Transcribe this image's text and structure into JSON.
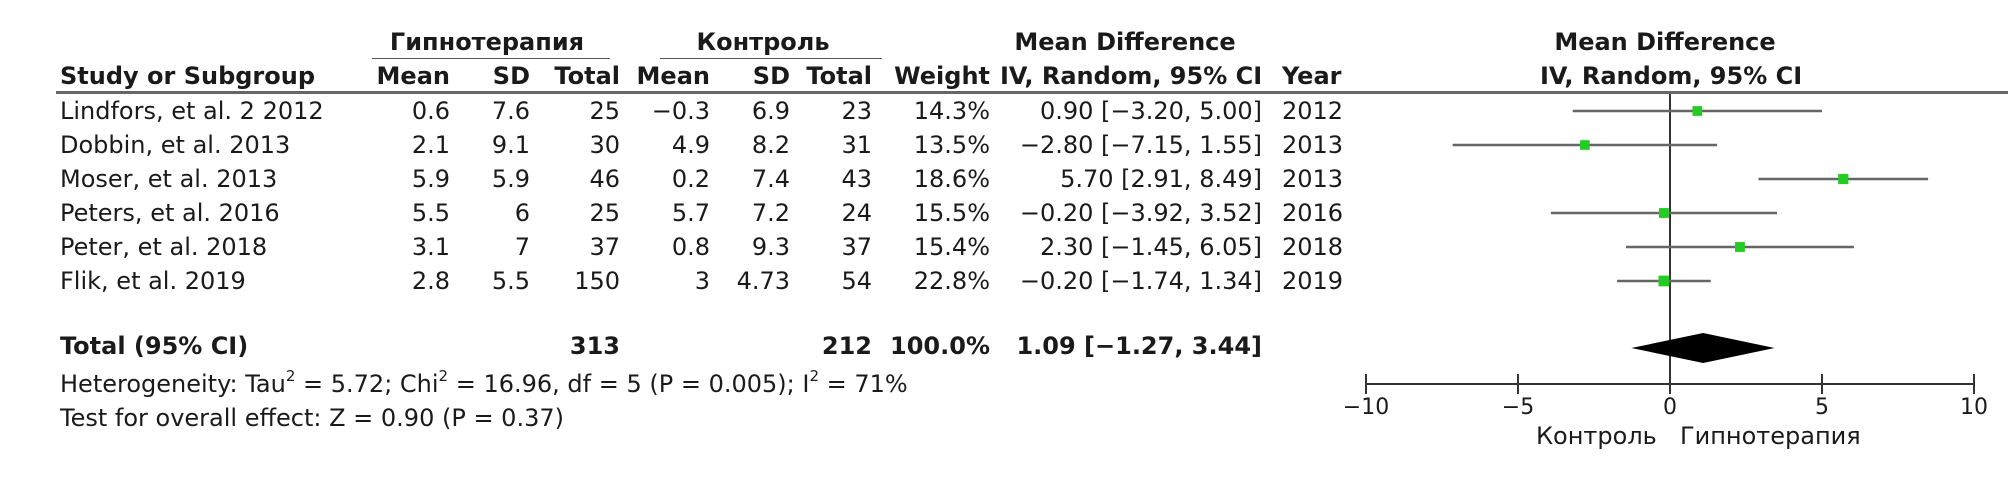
{
  "header": {
    "group1": "Гипнотерапия",
    "group2": "Контроль",
    "md_title": "Mean Difference",
    "md_sub": "IV, Random, 95% CI",
    "plot_title": "Mean Difference",
    "plot_sub": "IV, Random, 95% CI",
    "study": "Study or Subgroup",
    "mean1": "Mean",
    "sd1": "SD",
    "total1": "Total",
    "mean2": "Mean",
    "sd2": "SD",
    "total2": "Total",
    "weight": "Weight",
    "year": "Year"
  },
  "rows": [
    {
      "study": "Lindfors, et al. 2 2012",
      "mean1": "0.6",
      "sd1": "7.6",
      "total1": "25",
      "mean2": "−0.3",
      "sd2": "6.9",
      "total2": "23",
      "weight": "14.3%",
      "ci": "0.90 [−3.20, 5.00]",
      "year": "2012"
    },
    {
      "study": "Dobbin, et al. 2013",
      "mean1": "2.1",
      "sd1": "9.1",
      "total1": "30",
      "mean2": "4.9",
      "sd2": "8.2",
      "total2": "31",
      "weight": "13.5%",
      "ci": "−2.80 [−7.15, 1.55]",
      "year": "2013"
    },
    {
      "study": "Moser, et al. 2013",
      "mean1": "5.9",
      "sd1": "5.9",
      "total1": "46",
      "mean2": "0.2",
      "sd2": "7.4",
      "total2": "43",
      "weight": "18.6%",
      "ci": "5.70 [2.91, 8.49]",
      "year": "2013"
    },
    {
      "study": "Peters, et al. 2016",
      "mean1": "5.5",
      "sd1": "6",
      "total1": "25",
      "mean2": "5.7",
      "sd2": "7.2",
      "total2": "24",
      "weight": "15.5%",
      "ci": "−0.20 [−3.92, 3.52]",
      "year": "2016"
    },
    {
      "study": "Peter, et al. 2018",
      "mean1": "3.1",
      "sd1": "7",
      "total1": "37",
      "mean2": "0.8",
      "sd2": "9.3",
      "total2": "37",
      "weight": "15.4%",
      "ci": "2.30 [−1.45, 6.05]",
      "year": "2018"
    },
    {
      "study": "Flik, et al. 2019",
      "mean1": "2.8",
      "sd1": "5.5",
      "total1": "150",
      "mean2": "3",
      "sd2": "4.73",
      "total2": "54",
      "weight": "22.8%",
      "ci": "−0.20 [−1.74, 1.34]",
      "year": "2019"
    }
  ],
  "total": {
    "label": "Total (95% CI)",
    "total1": "313",
    "total2": "212",
    "weight": "100.0%",
    "ci": "1.09 [−1.27, 3.44]"
  },
  "heterogeneity": {
    "prefix": "Heterogeneity: Tau",
    "sup1": "2",
    "mid": " = 5.72; Chi",
    "sup2": "2",
    "rest": " = 16.96, df = 5 (P = 0.005); I",
    "sup3": "2",
    "end": " = 71%"
  },
  "overall_effect": "Test for overall effect: Z = 0.90 (P = 0.37)",
  "axis": {
    "left_label": "Контроль",
    "right_label": "Гипнотерапия"
  },
  "colors": {
    "point": "#22cc22",
    "ci_line": "#666666",
    "diamond": "#000000"
  },
  "chart_data": {
    "type": "forest",
    "title": "Mean Difference",
    "subtitle": "IV, Random, 95% CI",
    "xlim": [
      -10,
      10
    ],
    "xticks": [
      -10,
      -5,
      0,
      5,
      10
    ],
    "tick_labels": [
      "−10",
      "−5",
      "0",
      "5",
      "10"
    ],
    "series": [
      {
        "study": "Lindfors, et al. 2 2012",
        "estimate": 0.9,
        "lower": -3.2,
        "upper": 5.0,
        "weight": 14.3
      },
      {
        "study": "Dobbin, et al. 2013",
        "estimate": -2.8,
        "lower": -7.15,
        "upper": 1.55,
        "weight": 13.5
      },
      {
        "study": "Moser, et al. 2013",
        "estimate": 5.7,
        "lower": 2.91,
        "upper": 8.49,
        "weight": 18.6
      },
      {
        "study": "Peters, et al. 2016",
        "estimate": -0.2,
        "lower": -3.92,
        "upper": 3.52,
        "weight": 15.5
      },
      {
        "study": "Peter, et al. 2018",
        "estimate": 2.3,
        "lower": -1.45,
        "upper": 6.05,
        "weight": 15.4
      },
      {
        "study": "Flik, et al. 2019",
        "estimate": -0.2,
        "lower": -1.74,
        "upper": 1.34,
        "weight": 22.8
      }
    ],
    "pooled": {
      "estimate": 1.09,
      "lower": -1.27,
      "upper": 3.44
    },
    "xlabel_left": "Контроль",
    "xlabel_right": "Гипнотерапия"
  }
}
